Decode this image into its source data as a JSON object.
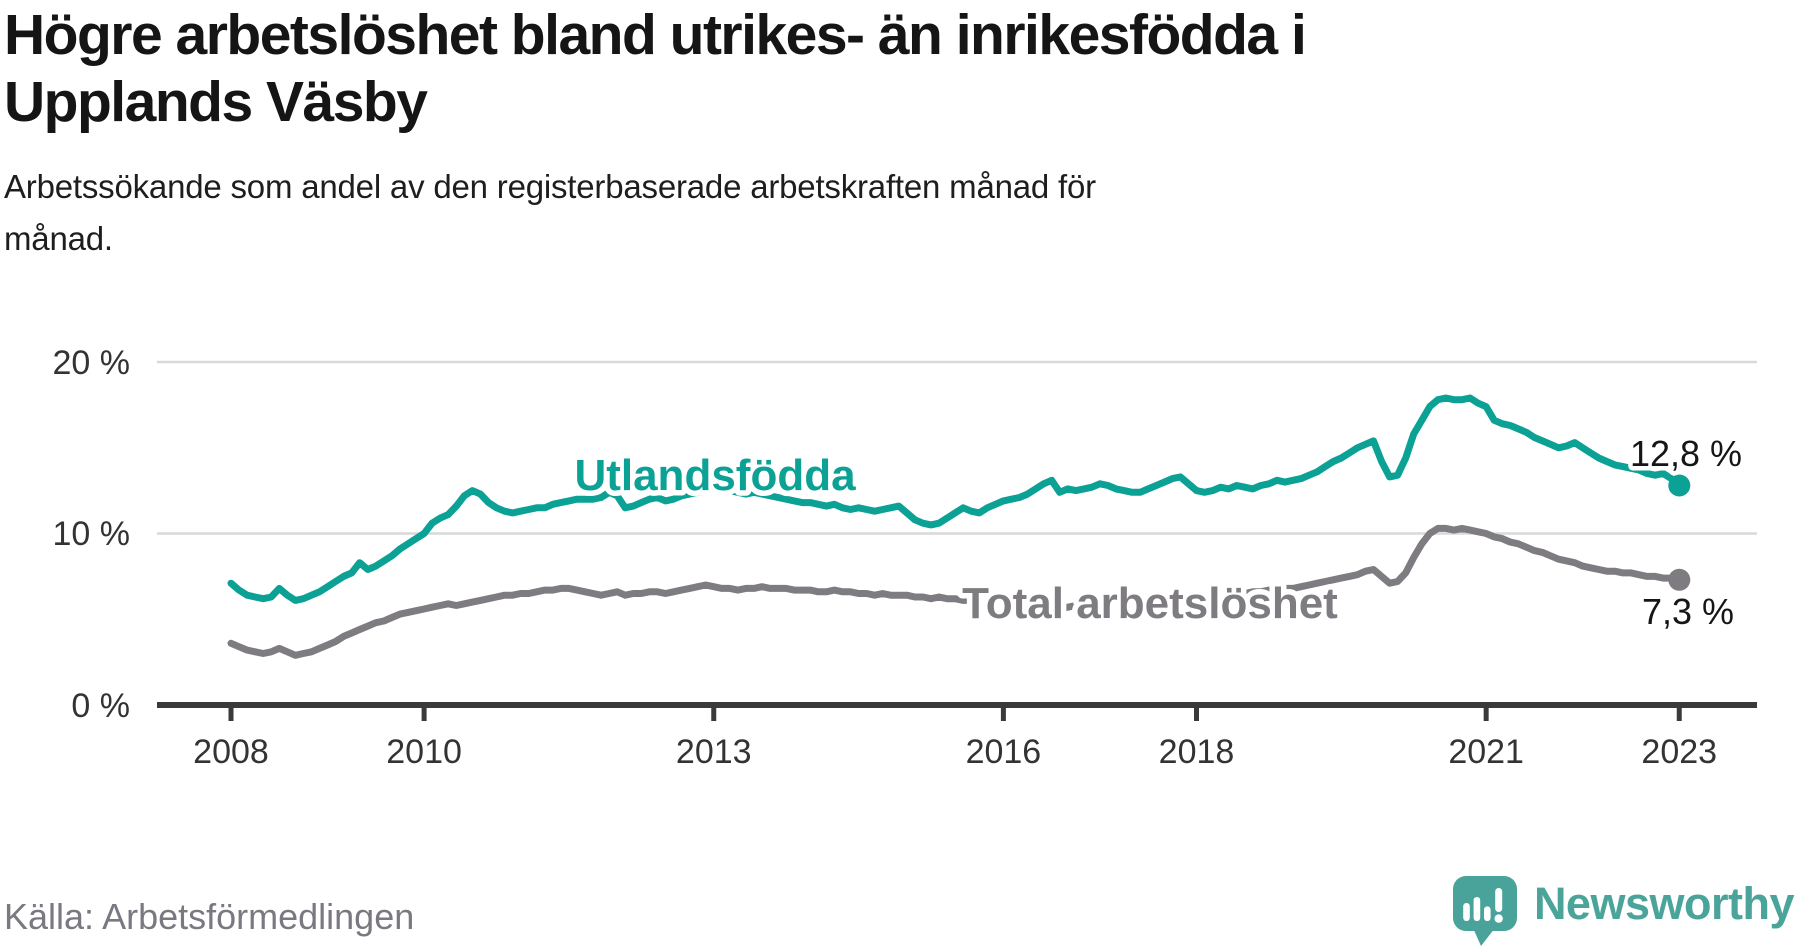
{
  "header": {
    "title_line1": "Högre arbetslöshet bland utrikes- än inrikesfödda i",
    "title_line2": "Upplands Väsby",
    "subtitle_line1": "Arbetssökande som andel av den registerbaserade arbetskraften månad för",
    "subtitle_line2": "månad."
  },
  "footer": {
    "source": "Källa: Arbetsförmedlingen",
    "brand": "Newsworthy",
    "brand_color": "#4ba49a"
  },
  "chart_data": {
    "type": "line",
    "title": "Högre arbetslöshet bland utrikes- än inrikesfödda i Upplands Väsby",
    "subtitle": "Arbetssökande som andel av den registerbaserade arbetskraften månad för månad.",
    "x_start_year": 2008,
    "x_interval": "monthly",
    "x_end": "2023-01",
    "x_ticks": [
      "2008",
      "2010",
      "2013",
      "2016",
      "2018",
      "2021",
      "2023"
    ],
    "y_ticks": [
      0,
      10,
      20
    ],
    "y_tick_labels": [
      "0 %",
      "10 %",
      "20 %"
    ],
    "ylim": [
      0,
      21.5
    ],
    "grid": "horizontal",
    "legend_position": "inline-labels",
    "axis_color": "#3a3a3a",
    "grid_color": "#d9d9d9",
    "series": [
      {
        "name": "Utlandsfödda",
        "label": "Utlandsfödda",
        "color": "#0ca195",
        "end_label": "12,8 %",
        "end_value": 12.8,
        "values": [
          7.1,
          6.7,
          6.4,
          6.3,
          6.2,
          6.3,
          6.8,
          6.4,
          6.1,
          6.2,
          6.4,
          6.6,
          6.9,
          7.2,
          7.5,
          7.7,
          8.3,
          7.9,
          8.1,
          8.4,
          8.7,
          9.1,
          9.4,
          9.7,
          10.0,
          10.6,
          10.9,
          11.1,
          11.6,
          12.2,
          12.5,
          12.3,
          11.8,
          11.5,
          11.3,
          11.2,
          11.3,
          11.4,
          11.5,
          11.5,
          11.7,
          11.8,
          11.9,
          12.0,
          12.0,
          12.0,
          12.1,
          12.4,
          12.2,
          11.5,
          11.6,
          11.8,
          12.0,
          12.1,
          11.9,
          12.0,
          12.2,
          12.3,
          12.4,
          12.5,
          12.6,
          12.6,
          12.5,
          12.4,
          12.3,
          12.4,
          12.3,
          12.2,
          12.1,
          12.0,
          11.9,
          11.8,
          11.8,
          11.7,
          11.6,
          11.7,
          11.5,
          11.4,
          11.5,
          11.4,
          11.3,
          11.4,
          11.5,
          11.6,
          11.2,
          10.8,
          10.6,
          10.5,
          10.6,
          10.9,
          11.2,
          11.5,
          11.3,
          11.2,
          11.5,
          11.7,
          11.9,
          12.0,
          12.1,
          12.3,
          12.6,
          12.9,
          13.1,
          12.4,
          12.6,
          12.5,
          12.6,
          12.7,
          12.9,
          12.8,
          12.6,
          12.5,
          12.4,
          12.4,
          12.6,
          12.8,
          13.0,
          13.2,
          13.3,
          12.9,
          12.5,
          12.4,
          12.5,
          12.7,
          12.6,
          12.8,
          12.7,
          12.6,
          12.8,
          12.9,
          13.1,
          13.0,
          13.1,
          13.2,
          13.4,
          13.6,
          13.9,
          14.2,
          14.4,
          14.7,
          15.0,
          15.2,
          15.4,
          14.2,
          13.3,
          13.4,
          14.4,
          15.8,
          16.6,
          17.4,
          17.8,
          17.9,
          17.8,
          17.8,
          17.9,
          17.6,
          17.4,
          16.6,
          16.4,
          16.3,
          16.1,
          15.9,
          15.6,
          15.4,
          15.2,
          15.0,
          15.1,
          15.3,
          15.0,
          14.7,
          14.4,
          14.2,
          14.0,
          13.9,
          13.8,
          13.7,
          13.5,
          13.4,
          13.5,
          13.2,
          12.8
        ]
      },
      {
        "name": "Total arbetslöshet",
        "label": "Total arbetslöshet",
        "color": "#7e7c80",
        "end_label": "7,3 %",
        "end_value": 7.3,
        "values": [
          3.6,
          3.4,
          3.2,
          3.1,
          3.0,
          3.1,
          3.3,
          3.1,
          2.9,
          3.0,
          3.1,
          3.3,
          3.5,
          3.7,
          4.0,
          4.2,
          4.4,
          4.6,
          4.8,
          4.9,
          5.1,
          5.3,
          5.4,
          5.5,
          5.6,
          5.7,
          5.8,
          5.9,
          5.8,
          5.9,
          6.0,
          6.1,
          6.2,
          6.3,
          6.4,
          6.4,
          6.5,
          6.5,
          6.6,
          6.7,
          6.7,
          6.8,
          6.8,
          6.7,
          6.6,
          6.5,
          6.4,
          6.5,
          6.6,
          6.4,
          6.5,
          6.5,
          6.6,
          6.6,
          6.5,
          6.6,
          6.7,
          6.8,
          6.9,
          7.0,
          6.9,
          6.8,
          6.8,
          6.7,
          6.8,
          6.8,
          6.9,
          6.8,
          6.8,
          6.8,
          6.7,
          6.7,
          6.7,
          6.6,
          6.6,
          6.7,
          6.6,
          6.6,
          6.5,
          6.5,
          6.4,
          6.5,
          6.4,
          6.4,
          6.4,
          6.3,
          6.3,
          6.2,
          6.3,
          6.2,
          6.2,
          6.1,
          6.1,
          6.2,
          6.1,
          6.1,
          6.0,
          6.0,
          5.9,
          5.9,
          5.8,
          5.7,
          5.7,
          5.6,
          5.7,
          5.8,
          5.9,
          5.9,
          6.0,
          6.0,
          6.1,
          6.0,
          6.1,
          6.1,
          6.0,
          6.1,
          6.2,
          6.2,
          6.3,
          6.3,
          6.3,
          6.4,
          6.4,
          6.5,
          6.4,
          6.5,
          6.5,
          6.6,
          6.6,
          6.7,
          6.7,
          6.8,
          6.8,
          6.9,
          7.0,
          7.1,
          7.2,
          7.3,
          7.4,
          7.5,
          7.6,
          7.8,
          7.9,
          7.5,
          7.1,
          7.2,
          7.7,
          8.6,
          9.4,
          10.0,
          10.3,
          10.3,
          10.2,
          10.3,
          10.2,
          10.1,
          10.0,
          9.8,
          9.7,
          9.5,
          9.4,
          9.2,
          9.0,
          8.9,
          8.7,
          8.5,
          8.4,
          8.3,
          8.1,
          8.0,
          7.9,
          7.8,
          7.8,
          7.7,
          7.7,
          7.6,
          7.5,
          7.5,
          7.4,
          7.4,
          7.3
        ]
      }
    ]
  }
}
